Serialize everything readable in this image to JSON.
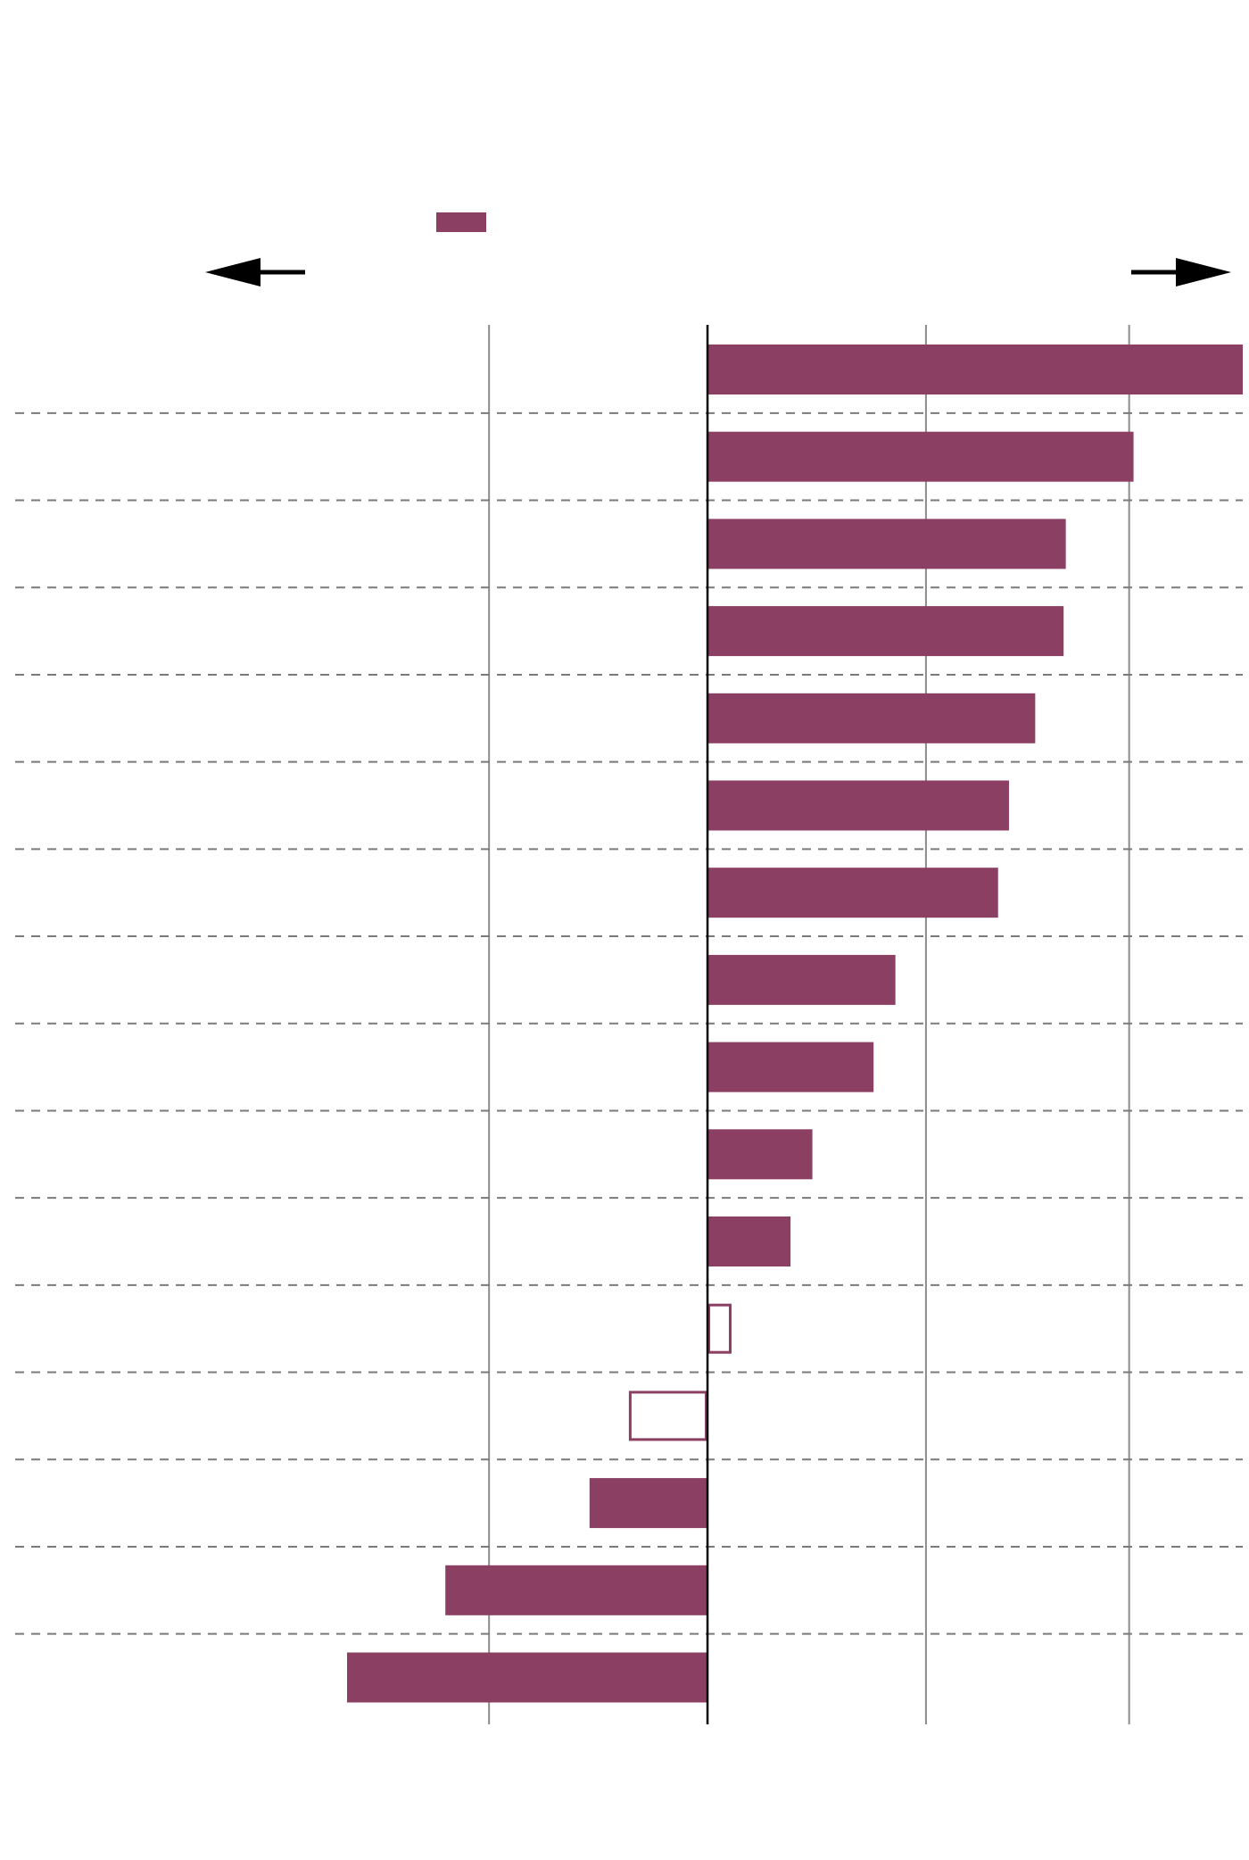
{
  "chart_data": {
    "type": "bar",
    "orientation": "horizontal",
    "title": "",
    "xlabel": "",
    "ylabel": "",
    "categories": [
      "",
      "",
      "",
      "",
      "",
      "",
      "",
      "",
      "",
      "",
      "",
      "",
      "",
      "",
      "",
      ""
    ],
    "values": [
      24.5,
      19.5,
      16.4,
      16.3,
      15.0,
      13.8,
      13.3,
      8.6,
      7.6,
      4.8,
      3.8,
      1.1,
      -3.6,
      -5.4,
      -12.0,
      -16.5
    ],
    "filled": [
      true,
      true,
      true,
      true,
      true,
      true,
      true,
      true,
      true,
      true,
      true,
      false,
      false,
      true,
      true,
      true
    ],
    "xlim": [
      -16.5,
      24.5
    ],
    "gridlines_x": [
      -10,
      10,
      19.3
    ],
    "zero_line": 0,
    "grid": true,
    "legend": {
      "placement": "top-left",
      "entries": [
        ""
      ]
    },
    "direction_arrows": {
      "left": "",
      "right": ""
    },
    "colors": {
      "bar": "#8b3f62",
      "gridline": "#8c8c8c",
      "separator": "#7a7a7a",
      "axis": "#000000"
    }
  }
}
